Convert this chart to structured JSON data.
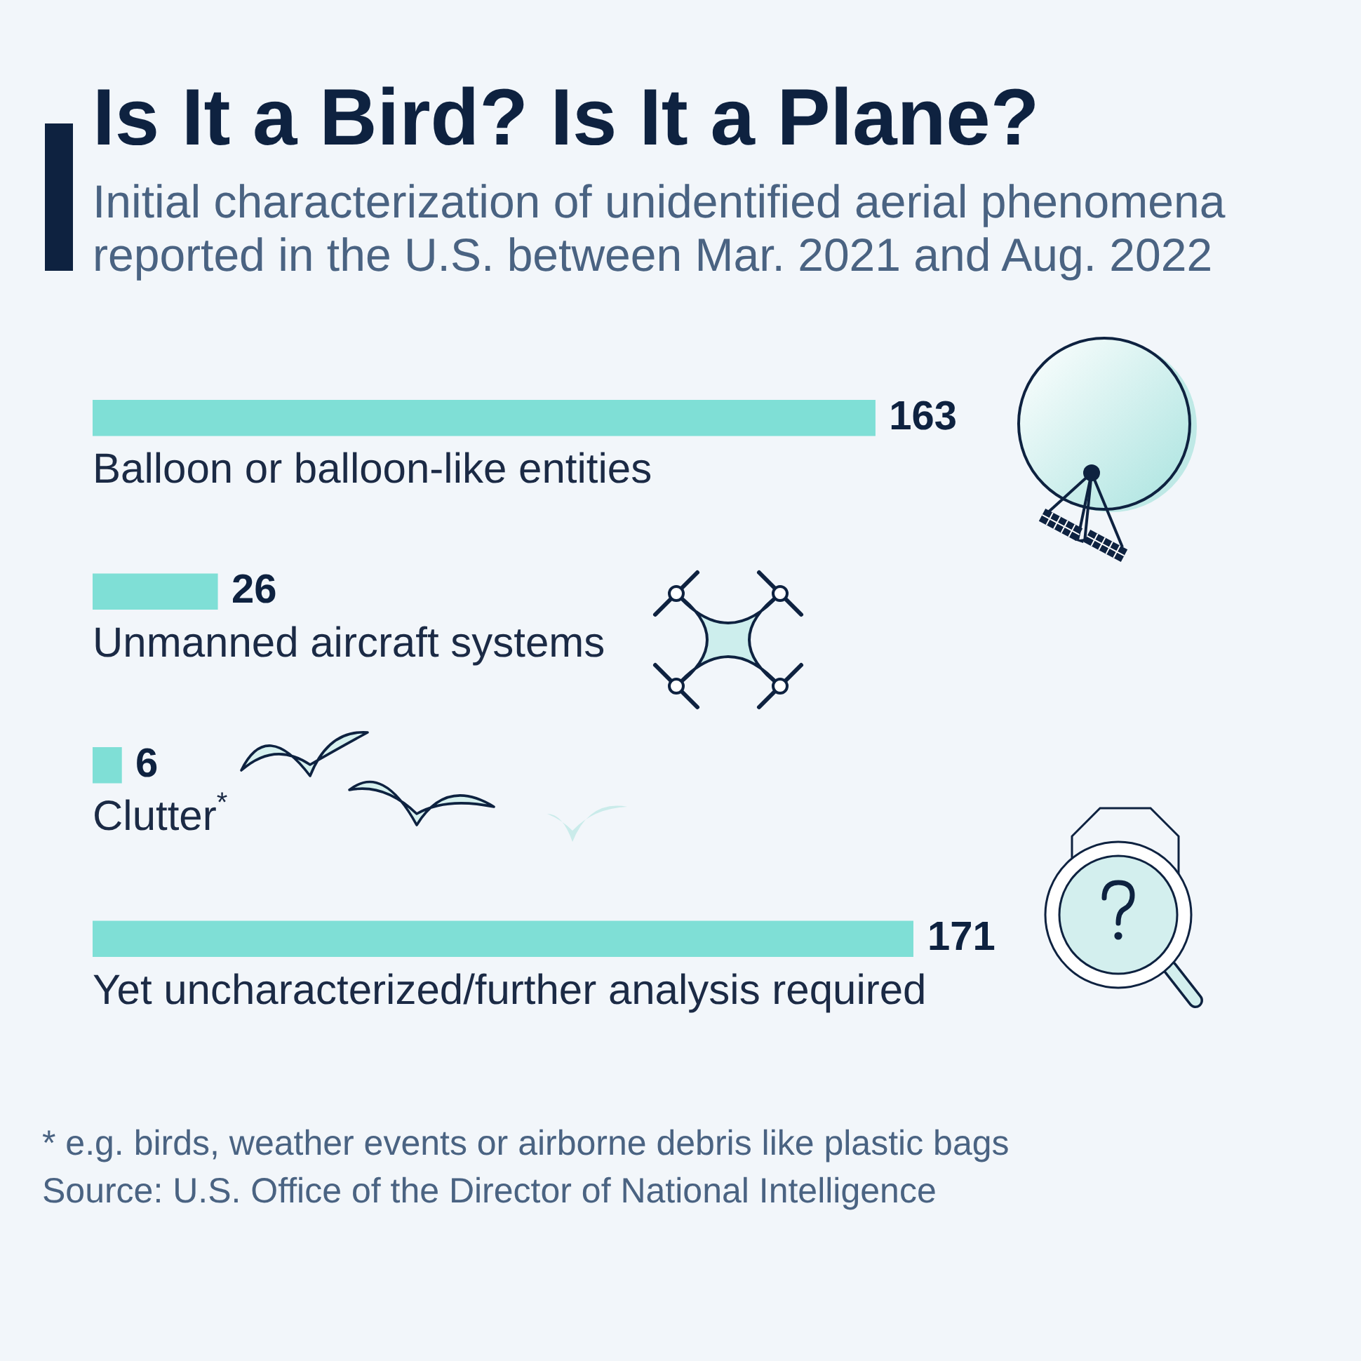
{
  "chart_data": {
    "type": "bar",
    "orientation": "horizontal",
    "title": "Is It a Bird? Is It a Plane?",
    "subtitle": "Initial characterization of unidentified aerial phenomena reported in the U.S. between Mar. 2021 and Aug. 2022",
    "categories": [
      "Balloon or balloon-like entities",
      "Unmanned aircraft systems",
      "Clutter$^{*}$",
      "Yet uncharacterized/further analysis required"
    ],
    "values": [
      163,
      26,
      6,
      171
    ],
    "color": "#7fdfd6",
    "data_labels": true,
    "tick_labels": "y",
    "annotations": [
      "* e.g. birds, weather events or airborne debris like plastic bags",
      "Source: U.S. Office of the Director of National Intelligence"
    ]
  }
}
